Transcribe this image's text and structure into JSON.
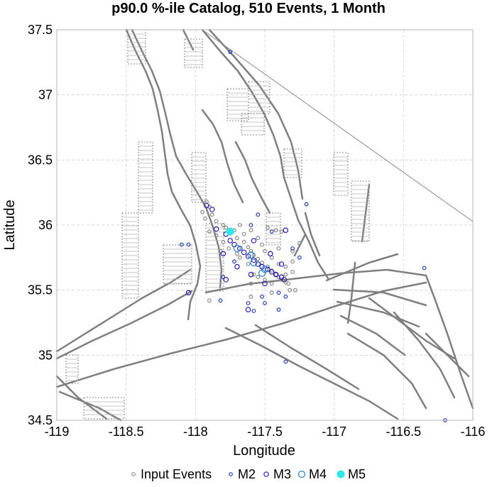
{
  "chart_data": {
    "type": "scatter",
    "title": "p90.0 %-ile Catalog, 510 Events, 1 Month",
    "xlabel": "Longitude",
    "ylabel": "Latitude",
    "xlim": [
      -119,
      -116
    ],
    "ylim": [
      34.5,
      37.5
    ],
    "xticks": [
      "-119",
      "-118.5",
      "-118",
      "-117.5",
      "-117",
      "-116.5",
      "-116"
    ],
    "yticks": [
      "34.5",
      "35",
      "35.5",
      "36",
      "36.5",
      "37",
      "37.5"
    ],
    "grid": true,
    "legend_position": "bottom",
    "series": [
      {
        "name": "Input Events",
        "color": "#888888",
        "marker": "open-circle-small",
        "points": [
          [
            -117.92,
            36.18
          ],
          [
            -117.9,
            36.14
          ],
          [
            -117.95,
            36.1
          ],
          [
            -117.88,
            36.08
          ],
          [
            -117.93,
            36.05
          ],
          [
            -117.85,
            36.03
          ],
          [
            -117.8,
            36.0
          ],
          [
            -117.78,
            35.98
          ],
          [
            -117.72,
            35.96
          ],
          [
            -117.7,
            35.9
          ],
          [
            -117.65,
            35.87
          ],
          [
            -117.62,
            35.83
          ],
          [
            -117.6,
            35.8
          ],
          [
            -117.58,
            35.77
          ],
          [
            -117.55,
            35.74
          ],
          [
            -117.52,
            35.71
          ],
          [
            -117.48,
            35.68
          ],
          [
            -117.45,
            35.65
          ],
          [
            -117.42,
            35.62
          ],
          [
            -117.4,
            35.6
          ],
          [
            -117.38,
            35.58
          ],
          [
            -117.35,
            35.56
          ],
          [
            -117.33,
            35.55
          ],
          [
            -117.48,
            35.98
          ],
          [
            -117.42,
            35.96
          ],
          [
            -117.38,
            35.95
          ],
          [
            -117.68,
            35.75
          ],
          [
            -117.62,
            35.7
          ],
          [
            -117.58,
            35.62
          ],
          [
            -117.55,
            35.6
          ],
          [
            -117.45,
            35.55
          ],
          [
            -117.6,
            35.55
          ],
          [
            -117.5,
            35.58
          ],
          [
            -117.35,
            35.68
          ],
          [
            -117.3,
            35.72
          ],
          [
            -117.3,
            35.8
          ],
          [
            -117.4,
            35.82
          ],
          [
            -117.45,
            35.75
          ],
          [
            -117.55,
            35.9
          ],
          [
            -117.7,
            35.78
          ],
          [
            -117.76,
            35.82
          ],
          [
            -117.8,
            35.87
          ],
          [
            -117.85,
            35.92
          ],
          [
            -117.82,
            35.8
          ],
          [
            -117.9,
            35.95
          ],
          [
            -117.65,
            35.93
          ],
          [
            -117.6,
            35.96
          ],
          [
            -117.68,
            36.0
          ],
          [
            -117.52,
            35.85
          ],
          [
            -117.35,
            35.62
          ],
          [
            -117.32,
            35.5
          ],
          [
            -117.45,
            35.48
          ],
          [
            -117.9,
            35.42
          ],
          [
            -117.6,
            35.45
          ],
          [
            -117.3,
            35.64
          ],
          [
            -117.4,
            35.7
          ],
          [
            -117.5,
            35.8
          ],
          [
            -117.25,
            35.86
          ],
          [
            -117.28,
            35.5
          ]
        ]
      },
      {
        "name": "M2",
        "color": "#1f3fb4",
        "marker": "open-circle-small",
        "points": [
          [
            -117.75,
            37.33
          ],
          [
            -117.2,
            36.16
          ],
          [
            -117.55,
            36.08
          ],
          [
            -118.1,
            35.85
          ],
          [
            -118.05,
            35.85
          ],
          [
            -117.72,
            35.72
          ],
          [
            -117.3,
            35.82
          ],
          [
            -117.25,
            35.75
          ],
          [
            -116.35,
            35.67
          ],
          [
            -117.4,
            35.48
          ],
          [
            -117.52,
            35.45
          ],
          [
            -117.62,
            35.4
          ],
          [
            -117.5,
            35.4
          ],
          [
            -117.35,
            35.45
          ],
          [
            -117.4,
            35.35
          ],
          [
            -117.82,
            35.42
          ],
          [
            -117.35,
            34.95
          ],
          [
            -117.8,
            35.6
          ],
          [
            -117.45,
            35.95
          ],
          [
            -117.6,
            36.0
          ],
          [
            -116.2,
            34.5
          ],
          [
            -117.58,
            35.34
          ]
        ]
      },
      {
        "name": "M3",
        "color": "#2a1fb0",
        "marker": "open-circle-medium",
        "points": [
          [
            -117.92,
            36.15
          ],
          [
            -117.88,
            36.12
          ],
          [
            -117.85,
            35.97
          ],
          [
            -117.78,
            35.93
          ],
          [
            -117.75,
            35.88
          ],
          [
            -117.72,
            35.85
          ],
          [
            -117.68,
            35.82
          ],
          [
            -117.65,
            35.79
          ],
          [
            -117.62,
            35.76
          ],
          [
            -117.58,
            35.73
          ],
          [
            -117.55,
            35.7
          ],
          [
            -117.52,
            35.68
          ],
          [
            -117.48,
            35.66
          ],
          [
            -117.45,
            35.64
          ],
          [
            -117.42,
            35.62
          ],
          [
            -117.38,
            35.6
          ],
          [
            -117.36,
            35.58
          ],
          [
            -118.05,
            35.48
          ],
          [
            -117.78,
            35.58
          ],
          [
            -117.62,
            35.35
          ],
          [
            -117.8,
            35.78
          ],
          [
            -117.6,
            35.62
          ],
          [
            -117.5,
            35.55
          ],
          [
            -117.7,
            35.68
          ],
          [
            -117.35,
            35.96
          ],
          [
            -117.38,
            35.7
          ],
          [
            -117.46,
            35.78
          ],
          [
            -117.58,
            35.88
          ]
        ]
      },
      {
        "name": "M4",
        "color": "#1f7fc8",
        "marker": "open-circle-large",
        "points": [
          [
            -117.6,
            35.77
          ],
          [
            -117.5,
            35.66
          ],
          [
            -117.7,
            35.82
          ],
          [
            -117.58,
            35.71
          ],
          [
            -117.52,
            35.63
          ]
        ]
      },
      {
        "name": "M5",
        "color": "#2de8e8",
        "marker": "filled-circle-large",
        "points": [
          [
            -117.75,
            35.95
          ]
        ]
      }
    ]
  }
}
